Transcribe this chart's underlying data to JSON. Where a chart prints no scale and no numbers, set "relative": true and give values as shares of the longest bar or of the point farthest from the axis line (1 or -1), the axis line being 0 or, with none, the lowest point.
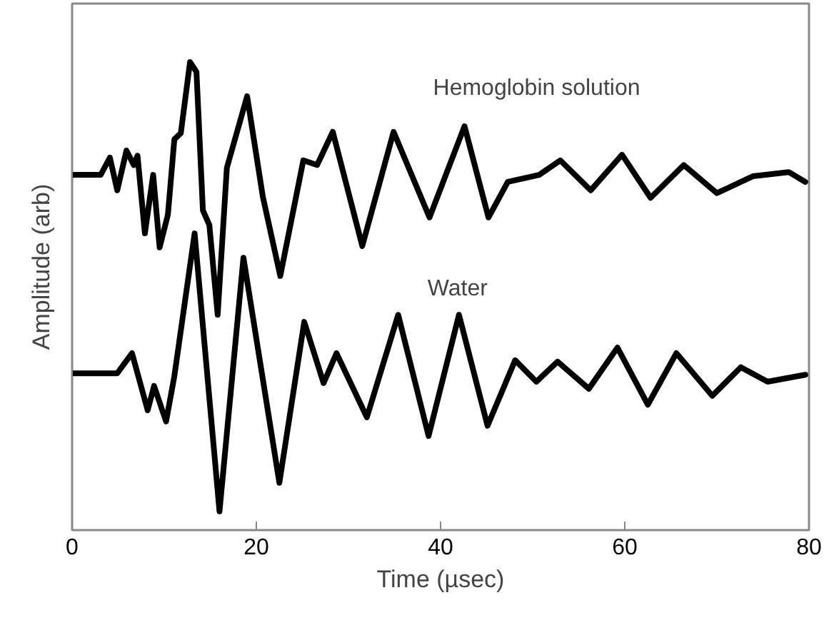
{
  "chart_data": {
    "type": "line",
    "relative": true,
    "xlabel": "Time (µsec)",
    "ylabel": "Amplitude (arb)",
    "xlim": [
      0,
      80
    ],
    "xticks": [
      0,
      20,
      40,
      60,
      80
    ],
    "grid": false,
    "legend": false,
    "tick_labels": "x",
    "series": [
      {
        "name": "Hemoglobin solution",
        "color": "#000000",
        "x": [
          0,
          3.1,
          4.1,
          4.9,
          5.9,
          6.7,
          7.1,
          7.9,
          8.8,
          9.5,
          10.4,
          11.1,
          11.8,
          12.8,
          13.5,
          14.2,
          14.9,
          15.8,
          16.8,
          19.0,
          20.7,
          22.6,
          25.1,
          26.6,
          28.3,
          31.5,
          34.9,
          38.8,
          42.6,
          45.2,
          47.3,
          50.7,
          53.0,
          56.3,
          59.7,
          62.8,
          66.4,
          70.0,
          73.9,
          77.8,
          79.6
        ],
        "values": [
          0.759,
          0.759,
          0.796,
          0.726,
          0.811,
          0.78,
          0.8,
          0.634,
          0.759,
          0.604,
          0.674,
          0.835,
          0.848,
          1.0,
          0.979,
          0.683,
          0.652,
          0.46,
          0.774,
          0.927,
          0.713,
          0.543,
          0.79,
          0.78,
          0.851,
          0.607,
          0.851,
          0.668,
          0.863,
          0.668,
          0.744,
          0.759,
          0.79,
          0.726,
          0.802,
          0.71,
          0.78,
          0.72,
          0.756,
          0.765,
          0.744
        ]
      },
      {
        "name": "Water",
        "color": "#000000",
        "x": [
          0,
          4.9,
          6.5,
          8.2,
          8.9,
          10.2,
          11.1,
          13.3,
          16.0,
          18.6,
          22.5,
          25.2,
          27.3,
          28.7,
          32.0,
          35.4,
          38.7,
          42.0,
          45.1,
          48.1,
          50.4,
          52.7,
          56.1,
          59.2,
          62.5,
          65.6,
          69.5,
          72.6,
          75.5,
          79.6
        ],
        "values": [
          0.335,
          0.335,
          0.378,
          0.256,
          0.308,
          0.232,
          0.329,
          0.634,
          0.04,
          0.582,
          0.101,
          0.445,
          0.314,
          0.378,
          0.241,
          0.46,
          0.201,
          0.46,
          0.223,
          0.363,
          0.317,
          0.36,
          0.302,
          0.39,
          0.268,
          0.378,
          0.287,
          0.348,
          0.317,
          0.332
        ]
      }
    ]
  }
}
